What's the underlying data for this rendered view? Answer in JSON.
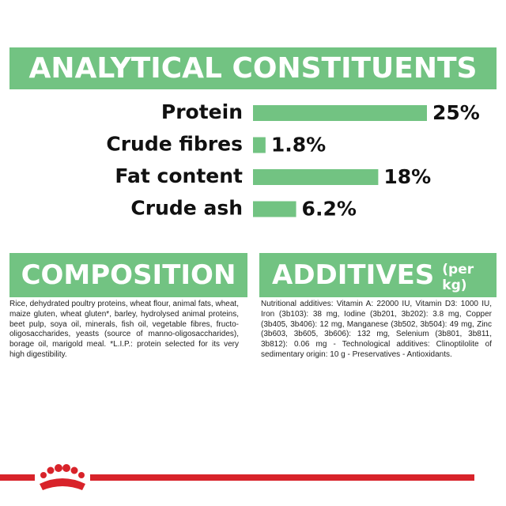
{
  "chart_data": {
    "type": "bar",
    "orientation": "horizontal",
    "title": "ANALYTICAL CONSTITUENTS",
    "categories": [
      "Protein",
      "Crude fibres",
      "Fat content",
      "Crude ash"
    ],
    "values": [
      25,
      1.8,
      18,
      6.2
    ],
    "value_labels": [
      "25%",
      "1.8%",
      "18%",
      "6.2%"
    ],
    "color": "#72c382"
  },
  "composition": {
    "title": "COMPOSITION",
    "text": "Rice, dehydrated poultry proteins, wheat flour, animal fats, wheat, maize gluten, wheat gluten*, barley, hydrolysed animal proteins, beet pulp, soya oil, minerals, fish oil, vegetable fibres, fructo-oligosaccharides, yeasts (source of manno-oligosaccharides), borage oil, marigold meal. *L.I.P.: protein selected for its very high digestibility."
  },
  "additives": {
    "title": "ADDITIVES",
    "subtitle": "(per kg)",
    "text": "Nutritional additives: Vitamin A: 22000 IU, Vitamin D3: 1000 IU, Iron (3b103): 38 mg, Iodine (3b201, 3b202): 3.8 mg, Copper (3b405, 3b406): 12 mg, Manganese (3b502, 3b504): 49 mg, Zinc (3b603, 3b605, 3b606): 132 mg, Selenium (3b801, 3b811, 3b812): 0.06 mg - Technological additives: Clinoptilolite of sedimentary origin: 10 g - Preservatives - Antioxidants."
  }
}
